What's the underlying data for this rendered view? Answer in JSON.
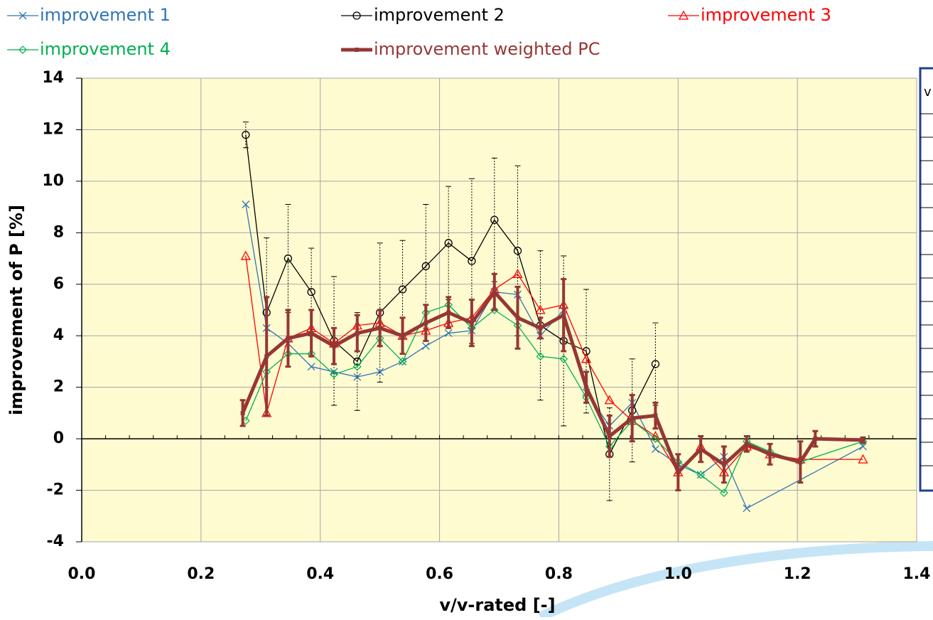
{
  "chart_data": {
    "type": "line",
    "xlabel": "v/v-rated [-]",
    "ylabel": "improvement of P [%]",
    "xlim": [
      0,
      1.4
    ],
    "ylim": [
      -4,
      14
    ],
    "xticks": [
      {
        "value": 0,
        "label": "0.0"
      },
      0.2,
      0.4,
      0.6,
      0.8,
      {
        "value": 1,
        "label": "1.0"
      },
      1.2,
      1.4
    ],
    "yticks": [
      -4,
      -2,
      0,
      2,
      4,
      6,
      8,
      10,
      12,
      14
    ],
    "grid": true,
    "legend": "top",
    "background": "#fffbd0",
    "series": [
      {
        "name": "improvement 1",
        "color": "#2e75b6",
        "marker": "x",
        "x": [
          0.275,
          0.31,
          0.346,
          0.385,
          0.423,
          0.462,
          0.5,
          0.538,
          0.577,
          0.615,
          0.654,
          0.692,
          0.731,
          0.769,
          0.808,
          0.846,
          0.885,
          0.923,
          0.962,
          1.0,
          1.038,
          1.077,
          1.115,
          1.31
        ],
        "values": [
          9.1,
          4.3,
          3.7,
          2.8,
          2.6,
          2.4,
          2.6,
          3.0,
          3.6,
          4.1,
          4.2,
          5.7,
          5.6,
          4.0,
          5.0,
          1.8,
          0.5,
          1.4,
          -0.4,
          -1.0,
          -1.4,
          -0.7,
          -2.7,
          -0.3
        ]
      },
      {
        "name": "improvement 2",
        "color": "#000000",
        "marker": "circle",
        "x": [
          0.275,
          0.31,
          0.346,
          0.385,
          0.423,
          0.462,
          0.5,
          0.538,
          0.577,
          0.615,
          0.654,
          0.692,
          0.731,
          0.769,
          0.808,
          0.846,
          0.885,
          0.923,
          0.962
        ],
        "values": [
          11.8,
          4.9,
          7.0,
          5.7,
          3.8,
          3.0,
          4.9,
          5.8,
          6.7,
          7.6,
          6.9,
          8.5,
          7.3,
          4.4,
          3.8,
          3.4,
          -0.6,
          1.1,
          2.9
        ],
        "errors": [
          0.5,
          2.9,
          2.1,
          1.7,
          2.5,
          1.9,
          2.7,
          1.9,
          2.4,
          2.2,
          3.2,
          2.4,
          3.3,
          2.9,
          3.3,
          2.4,
          1.8,
          2.0,
          1.6
        ]
      },
      {
        "name": "improvement 3",
        "color": "#ff0000",
        "marker": "triangle",
        "x": [
          0.275,
          0.31,
          0.346,
          0.385,
          0.423,
          0.462,
          0.5,
          0.538,
          0.577,
          0.615,
          0.654,
          0.692,
          0.731,
          0.769,
          0.808,
          0.846,
          0.885,
          0.923,
          0.962,
          1.0,
          1.038,
          1.077,
          1.115,
          1.154,
          1.205,
          1.31
        ],
        "values": [
          7.1,
          1.0,
          3.9,
          4.3,
          3.7,
          4.4,
          4.5,
          4.0,
          4.2,
          4.5,
          4.7,
          5.8,
          6.4,
          5.0,
          5.2,
          3.1,
          1.5,
          0.7,
          0.1,
          -1.3,
          -0.3,
          -1.3,
          -0.3,
          -0.6,
          -0.8,
          -0.8
        ]
      },
      {
        "name": "improvement 4",
        "color": "#00b050",
        "marker": "diamond",
        "x": [
          0.275,
          0.31,
          0.346,
          0.385,
          0.423,
          0.462,
          0.5,
          0.538,
          0.577,
          0.615,
          0.654,
          0.692,
          0.731,
          0.769,
          0.808,
          0.846,
          0.885,
          0.923,
          0.962,
          1.0,
          1.038,
          1.077,
          1.115,
          1.154,
          1.205,
          1.31
        ],
        "values": [
          0.7,
          2.6,
          3.3,
          3.3,
          2.5,
          2.8,
          3.9,
          3.0,
          4.9,
          5.2,
          4.3,
          5.0,
          4.4,
          3.2,
          3.1,
          1.6,
          -0.3,
          0.7,
          0.0,
          -0.9,
          -1.4,
          -2.1,
          -0.1,
          -0.5,
          -0.9,
          -0.1
        ]
      },
      {
        "name": "improvement weighted PC",
        "color": "#953735",
        "marker": "square",
        "width": 5,
        "x": [
          0.27,
          0.31,
          0.346,
          0.385,
          0.423,
          0.462,
          0.5,
          0.538,
          0.577,
          0.615,
          0.654,
          0.692,
          0.731,
          0.769,
          0.808,
          0.846,
          0.885,
          0.923,
          0.962,
          1.0,
          1.038,
          1.077,
          1.115,
          1.154,
          1.205,
          1.23,
          1.31
        ],
        "values": [
          1.0,
          3.2,
          3.9,
          4.1,
          3.6,
          4.1,
          4.3,
          4.0,
          4.5,
          4.9,
          4.5,
          5.7,
          4.7,
          4.3,
          4.8,
          2.0,
          0.1,
          0.8,
          0.9,
          -1.3,
          -0.4,
          -1.0,
          -0.2,
          -0.6,
          -0.9,
          0.0,
          -0.05
        ],
        "errors": [
          0.5,
          2.3,
          1.1,
          0.9,
          0.7,
          0.7,
          0.7,
          0.7,
          0.7,
          0.6,
          0.9,
          0.7,
          1.2,
          0.4,
          1.4,
          0.6,
          0.8,
          0.9,
          0.5,
          0.7,
          0.5,
          0.7,
          0.3,
          0.4,
          0.8,
          0.3,
          0.1
        ]
      }
    ]
  },
  "side_panel_text": "v"
}
